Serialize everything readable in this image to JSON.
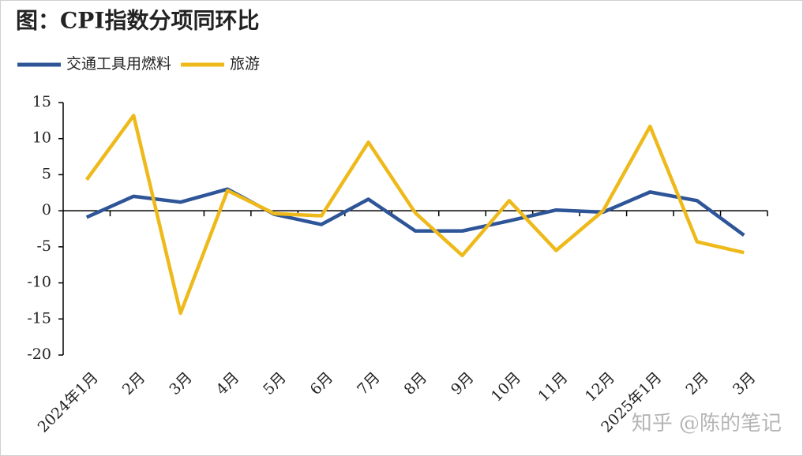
{
  "chart_data": {
    "type": "line",
    "title": "图：CPI指数分项同环比",
    "categories": [
      "2024年1月",
      "2月",
      "3月",
      "4月",
      "5月",
      "6月",
      "7月",
      "8月",
      "9月",
      "10月",
      "11月",
      "12月",
      "2025年1月",
      "2月",
      "3月"
    ],
    "series": [
      {
        "name": "交通工具用燃料",
        "color": "#2e5597",
        "values": [
          -0.9,
          2.0,
          1.2,
          3.0,
          -0.5,
          -1.9,
          1.6,
          -2.8,
          -2.8,
          -1.4,
          0.1,
          -0.2,
          2.6,
          1.4,
          -3.4
        ]
      },
      {
        "name": "旅游",
        "color": "#eeb91a",
        "values": [
          4.3,
          13.2,
          -14.2,
          2.8,
          -0.4,
          -0.7,
          9.5,
          -0.3,
          -6.2,
          1.4,
          -5.5,
          0,
          11.7,
          -4.3,
          -5.8
        ]
      }
    ],
    "ylim": [
      -20,
      15
    ],
    "yticks": [
      -20,
      -15,
      -10,
      -5,
      0,
      5,
      10,
      15
    ],
    "legend": "top-left",
    "grid": false,
    "annotation": "知乎 @陈的笔记"
  }
}
